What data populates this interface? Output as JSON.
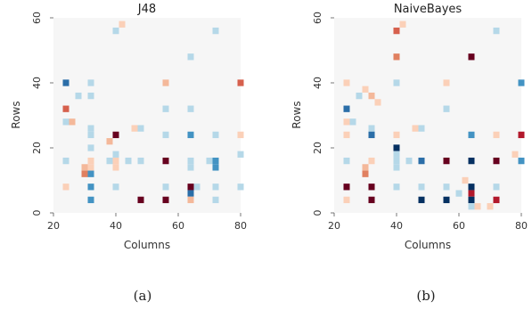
{
  "chart_data": [
    {
      "type": "heatmap",
      "title": "J48",
      "xlabel": "Columns",
      "ylabel": "Rows",
      "xlim": [
        20,
        80
      ],
      "ylim": [
        0,
        60
      ],
      "xticks": [
        "20",
        "40",
        "60",
        "80"
      ],
      "yticks": [
        "0",
        "20",
        "40",
        "60"
      ],
      "grid": false,
      "caption": "(a)",
      "cells": [
        {
          "x": 40,
          "y": 56,
          "c": "#b5d8e8"
        },
        {
          "x": 42,
          "y": 58,
          "c": "#fbd0b8"
        },
        {
          "x": 72,
          "y": 56,
          "c": "#b5d8e8"
        },
        {
          "x": 64,
          "y": 48,
          "c": "#b5d8e8"
        },
        {
          "x": 24,
          "y": 40,
          "c": "#2b6ea8"
        },
        {
          "x": 32,
          "y": 40,
          "c": "#b5d8e8"
        },
        {
          "x": 56,
          "y": 40,
          "c": "#f4b89a"
        },
        {
          "x": 80,
          "y": 40,
          "c": "#d6604d"
        },
        {
          "x": 28,
          "y": 36,
          "c": "#b5d8e8"
        },
        {
          "x": 32,
          "y": 36,
          "c": "#b5d8e8"
        },
        {
          "x": 24,
          "y": 32,
          "c": "#d6604d"
        },
        {
          "x": 56,
          "y": 32,
          "c": "#b5d8e8"
        },
        {
          "x": 64,
          "y": 32,
          "c": "#b5d8e8"
        },
        {
          "x": 24,
          "y": 28,
          "c": "#b5d8e8"
        },
        {
          "x": 26,
          "y": 28,
          "c": "#f4b89a"
        },
        {
          "x": 32,
          "y": 26,
          "c": "#b5d8e8"
        },
        {
          "x": 32,
          "y": 24,
          "c": "#b5d8e8"
        },
        {
          "x": 40,
          "y": 24,
          "c": "#67001f"
        },
        {
          "x": 38,
          "y": 22,
          "c": "#f4b89a"
        },
        {
          "x": 46,
          "y": 26,
          "c": "#fbd0b8"
        },
        {
          "x": 48,
          "y": 26,
          "c": "#b5d8e8"
        },
        {
          "x": 56,
          "y": 24,
          "c": "#b5d8e8"
        },
        {
          "x": 64,
          "y": 24,
          "c": "#4393c3"
        },
        {
          "x": 72,
          "y": 24,
          "c": "#b5d8e8"
        },
        {
          "x": 80,
          "y": 24,
          "c": "#fbd0b8"
        },
        {
          "x": 32,
          "y": 20,
          "c": "#b5d8e8"
        },
        {
          "x": 40,
          "y": 18,
          "c": "#b5d8e8"
        },
        {
          "x": 24,
          "y": 16,
          "c": "#b5d8e8"
        },
        {
          "x": 32,
          "y": 16,
          "c": "#fbd0b8"
        },
        {
          "x": 38,
          "y": 16,
          "c": "#b5d8e8"
        },
        {
          "x": 40,
          "y": 16,
          "c": "#fbd0b8"
        },
        {
          "x": 44,
          "y": 16,
          "c": "#b5d8e8"
        },
        {
          "x": 48,
          "y": 16,
          "c": "#b5d8e8"
        },
        {
          "x": 56,
          "y": 16,
          "c": "#67001f"
        },
        {
          "x": 64,
          "y": 16,
          "c": "#b5d8e8"
        },
        {
          "x": 70,
          "y": 16,
          "c": "#b5d8e8"
        },
        {
          "x": 72,
          "y": 16,
          "c": "#4393c3"
        },
        {
          "x": 80,
          "y": 18,
          "c": "#b5d8e8"
        },
        {
          "x": 30,
          "y": 14,
          "c": "#f4b89a"
        },
        {
          "x": 32,
          "y": 14,
          "c": "#fbd0b8"
        },
        {
          "x": 40,
          "y": 14,
          "c": "#fbd0b8"
        },
        {
          "x": 30,
          "y": 12,
          "c": "#e08060"
        },
        {
          "x": 32,
          "y": 12,
          "c": "#4393c3"
        },
        {
          "x": 64,
          "y": 14,
          "c": "#b5d8e8"
        },
        {
          "x": 72,
          "y": 14,
          "c": "#4393c3"
        },
        {
          "x": 24,
          "y": 8,
          "c": "#fbd0b8"
        },
        {
          "x": 32,
          "y": 8,
          "c": "#4393c3"
        },
        {
          "x": 40,
          "y": 8,
          "c": "#b5d8e8"
        },
        {
          "x": 56,
          "y": 8,
          "c": "#b5d8e8"
        },
        {
          "x": 64,
          "y": 8,
          "c": "#67001f"
        },
        {
          "x": 64,
          "y": 6,
          "c": "#2b6ea8"
        },
        {
          "x": 66,
          "y": 8,
          "c": "#b5d8e8"
        },
        {
          "x": 72,
          "y": 8,
          "c": "#b5d8e8"
        },
        {
          "x": 80,
          "y": 8,
          "c": "#b5d8e8"
        },
        {
          "x": 32,
          "y": 4,
          "c": "#4393c3"
        },
        {
          "x": 48,
          "y": 4,
          "c": "#67001f"
        },
        {
          "x": 56,
          "y": 4,
          "c": "#67001f"
        },
        {
          "x": 64,
          "y": 4,
          "c": "#f4b89a"
        },
        {
          "x": 72,
          "y": 4,
          "c": "#b5d8e8"
        }
      ]
    },
    {
      "type": "heatmap",
      "title": "NaiveBayes",
      "xlabel": "Columns",
      "ylabel": "Rows",
      "xlim": [
        20,
        80
      ],
      "ylim": [
        0,
        60
      ],
      "xticks": [
        "20",
        "40",
        "60",
        "80"
      ],
      "yticks": [
        "0",
        "20",
        "40",
        "60"
      ],
      "grid": false,
      "caption": "(b)",
      "cells": [
        {
          "x": 40,
          "y": 56,
          "c": "#d6604d"
        },
        {
          "x": 42,
          "y": 58,
          "c": "#fbd0b8"
        },
        {
          "x": 72,
          "y": 56,
          "c": "#b5d8e8"
        },
        {
          "x": 40,
          "y": 48,
          "c": "#e08060"
        },
        {
          "x": 64,
          "y": 48,
          "c": "#67001f"
        },
        {
          "x": 24,
          "y": 40,
          "c": "#fbd0b8"
        },
        {
          "x": 30,
          "y": 38,
          "c": "#fbd0b8"
        },
        {
          "x": 32,
          "y": 36,
          "c": "#f4b89a"
        },
        {
          "x": 28,
          "y": 36,
          "c": "#b5d8e8"
        },
        {
          "x": 34,
          "y": 34,
          "c": "#fbd0b8"
        },
        {
          "x": 40,
          "y": 40,
          "c": "#b5d8e8"
        },
        {
          "x": 56,
          "y": 40,
          "c": "#fbd0b8"
        },
        {
          "x": 80,
          "y": 40,
          "c": "#4393c3"
        },
        {
          "x": 24,
          "y": 32,
          "c": "#2b6ea8"
        },
        {
          "x": 56,
          "y": 32,
          "c": "#b5d8e8"
        },
        {
          "x": 24,
          "y": 28,
          "c": "#fbd0b8"
        },
        {
          "x": 26,
          "y": 28,
          "c": "#b5d8e8"
        },
        {
          "x": 32,
          "y": 26,
          "c": "#b5d8e8"
        },
        {
          "x": 24,
          "y": 24,
          "c": "#fbd0b8"
        },
        {
          "x": 32,
          "y": 24,
          "c": "#2b6ea8"
        },
        {
          "x": 40,
          "y": 24,
          "c": "#fbd0b8"
        },
        {
          "x": 46,
          "y": 26,
          "c": "#fbd0b8"
        },
        {
          "x": 48,
          "y": 26,
          "c": "#b5d8e8"
        },
        {
          "x": 64,
          "y": 24,
          "c": "#4393c3"
        },
        {
          "x": 72,
          "y": 24,
          "c": "#fbd0b8"
        },
        {
          "x": 80,
          "y": 24,
          "c": "#b2182b"
        },
        {
          "x": 40,
          "y": 20,
          "c": "#053061"
        },
        {
          "x": 24,
          "y": 16,
          "c": "#b5d8e8"
        },
        {
          "x": 32,
          "y": 16,
          "c": "#fbd0b8"
        },
        {
          "x": 40,
          "y": 18,
          "c": "#b5d8e8"
        },
        {
          "x": 40,
          "y": 16,
          "c": "#b5d8e8"
        },
        {
          "x": 44,
          "y": 16,
          "c": "#b5d8e8"
        },
        {
          "x": 48,
          "y": 16,
          "c": "#2b6ea8"
        },
        {
          "x": 56,
          "y": 16,
          "c": "#67001f"
        },
        {
          "x": 64,
          "y": 16,
          "c": "#053061"
        },
        {
          "x": 72,
          "y": 16,
          "c": "#67001f"
        },
        {
          "x": 80,
          "y": 16,
          "c": "#4393c3"
        },
        {
          "x": 78,
          "y": 18,
          "c": "#fbd0b8"
        },
        {
          "x": 30,
          "y": 14,
          "c": "#f4b89a"
        },
        {
          "x": 30,
          "y": 12,
          "c": "#e08060"
        },
        {
          "x": 40,
          "y": 14,
          "c": "#b5d8e8"
        },
        {
          "x": 62,
          "y": 10,
          "c": "#fbd0b8"
        },
        {
          "x": 24,
          "y": 8,
          "c": "#67001f"
        },
        {
          "x": 32,
          "y": 8,
          "c": "#67001f"
        },
        {
          "x": 40,
          "y": 8,
          "c": "#b5d8e8"
        },
        {
          "x": 48,
          "y": 8,
          "c": "#b5d8e8"
        },
        {
          "x": 56,
          "y": 8,
          "c": "#b5d8e8"
        },
        {
          "x": 60,
          "y": 6,
          "c": "#b5d8e8"
        },
        {
          "x": 64,
          "y": 8,
          "c": "#053061"
        },
        {
          "x": 64,
          "y": 6,
          "c": "#b2182b"
        },
        {
          "x": 72,
          "y": 8,
          "c": "#b5d8e8"
        },
        {
          "x": 24,
          "y": 4,
          "c": "#fbd0b8"
        },
        {
          "x": 32,
          "y": 4,
          "c": "#67001f"
        },
        {
          "x": 48,
          "y": 4,
          "c": "#053061"
        },
        {
          "x": 56,
          "y": 4,
          "c": "#053061"
        },
        {
          "x": 64,
          "y": 4,
          "c": "#053061"
        },
        {
          "x": 64,
          "y": 2,
          "c": "#b5d8e8"
        },
        {
          "x": 66,
          "y": 2,
          "c": "#fbd0b8"
        },
        {
          "x": 70,
          "y": 2,
          "c": "#fbd0b8"
        },
        {
          "x": 72,
          "y": 4,
          "c": "#b2182b"
        }
      ]
    }
  ]
}
